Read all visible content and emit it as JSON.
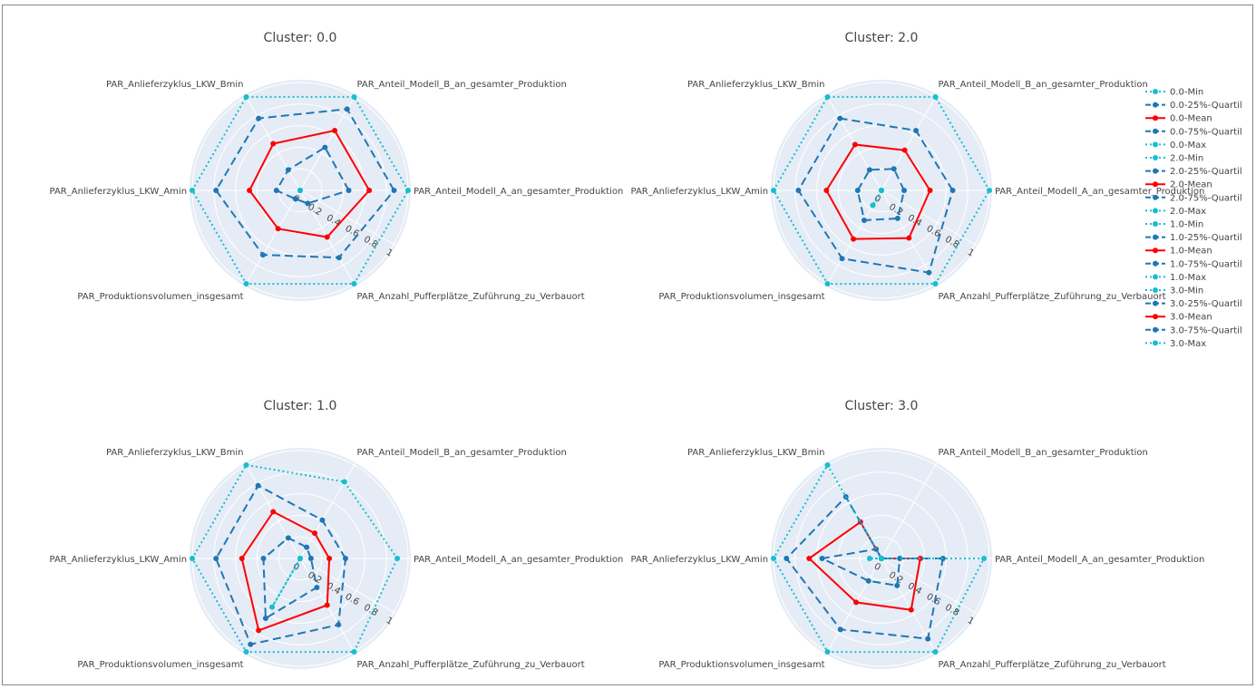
{
  "colors": {
    "min_max": "#17becf",
    "quartil": "#1f77b4",
    "mean": "#ff0000",
    "polar_bg": "#e5ecf6",
    "grid": "#ffffff"
  },
  "chart_data": [
    {
      "type": "radar",
      "title": "Cluster: 0.0",
      "categories": [
        "PAR_Anteil_Modell_A_an_gesamter_Produktion",
        "PAR_Anteil_Modell_B_an_gesamter_Produktion",
        "PAR_Anlieferzyklus_LKW_Bmin",
        "PAR_Anlieferzyklus_LKW_Amin",
        "PAR_Produktionsvolumen_insgesamt",
        "PAR_Anzahl_Pufferplätze_Zuführung_zu_Verbauort"
      ],
      "radial_ticks": [
        "0",
        "0.2",
        "0.4",
        "0.6",
        "0.8",
        "1"
      ],
      "rrange": [
        0,
        1
      ],
      "series": [
        {
          "name": "0.0-Min",
          "style": "dot",
          "values": [
            0,
            0,
            0,
            0,
            0,
            0
          ]
        },
        {
          "name": "0.0-25%-Quartil",
          "style": "dash",
          "values": [
            0.45,
            0.46,
            0.22,
            0.22,
            0.09,
            0.14
          ]
        },
        {
          "name": "0.0-Mean",
          "style": "solid",
          "values": [
            0.64,
            0.64,
            0.5,
            0.47,
            0.41,
            0.5
          ]
        },
        {
          "name": "0.0-75%-Quartil",
          "style": "dash",
          "values": [
            0.87,
            0.87,
            0.77,
            0.78,
            0.69,
            0.72
          ]
        },
        {
          "name": "0.0-Max",
          "style": "dot",
          "values": [
            1,
            1,
            1,
            1,
            1,
            1
          ]
        }
      ]
    },
    {
      "type": "radar",
      "title": "Cluster: 2.0",
      "categories": [
        "PAR_Anteil_Modell_A_an_gesamter_Produktion",
        "PAR_Anteil_Modell_B_an_gesamter_Produktion",
        "PAR_Anlieferzyklus_LKW_Bmin",
        "PAR_Anlieferzyklus_LKW_Amin",
        "PAR_Produktionsvolumen_insgesamt",
        "PAR_Anzahl_Pufferplätze_Zuführung_zu_Verbauort"
      ],
      "radial_ticks": [
        "0",
        "0.2",
        "0.4",
        "0.6",
        "0.8",
        "1"
      ],
      "rrange": [
        0,
        1
      ],
      "series": [
        {
          "name": "2.0-Min",
          "style": "dot",
          "values": [
            0,
            0,
            0,
            0,
            0.16,
            0
          ]
        },
        {
          "name": "2.0-25%-Quartil",
          "style": "dash",
          "values": [
            0.21,
            0.23,
            0.22,
            0.22,
            0.32,
            0.3
          ]
        },
        {
          "name": "2.0-Mean",
          "style": "solid",
          "values": [
            0.45,
            0.43,
            0.49,
            0.51,
            0.52,
            0.51
          ]
        },
        {
          "name": "2.0-75%-Quartil",
          "style": "dash",
          "values": [
            0.66,
            0.64,
            0.77,
            0.77,
            0.73,
            0.88
          ]
        },
        {
          "name": "2.0-Max",
          "style": "dot",
          "values": [
            1,
            1,
            1,
            1,
            1,
            1
          ]
        }
      ]
    },
    {
      "type": "radar",
      "title": "Cluster: 1.0",
      "categories": [
        "PAR_Anteil_Modell_A_an_gesamter_Produktion",
        "PAR_Anteil_Modell_B_an_gesamter_Produktion",
        "PAR_Anlieferzyklus_LKW_Bmin",
        "PAR_Anlieferzyklus_LKW_Amin",
        "PAR_Produktionsvolumen_insgesamt",
        "PAR_Anzahl_Pufferplätze_Zuführung_zu_Verbauort"
      ],
      "radial_ticks": [
        "0",
        "0.2",
        "0.4",
        "0.6",
        "0.8",
        "1"
      ],
      "rrange": [
        0,
        1
      ],
      "series": [
        {
          "name": "1.0-Min",
          "style": "dot",
          "values": [
            0,
            0,
            0,
            0,
            0.52,
            0
          ]
        },
        {
          "name": "1.0-25%-Quartil",
          "style": "dash",
          "values": [
            0.1,
            0.12,
            0.22,
            0.34,
            0.64,
            0.31
          ]
        },
        {
          "name": "1.0-Mean",
          "style": "solid",
          "values": [
            0.27,
            0.27,
            0.5,
            0.54,
            0.77,
            0.5
          ]
        },
        {
          "name": "1.0-75%-Quartil",
          "style": "dash",
          "values": [
            0.42,
            0.41,
            0.78,
            0.78,
            0.92,
            0.71
          ]
        },
        {
          "name": "1.0-Max",
          "style": "dot",
          "values": [
            0.9,
            0.82,
            1,
            1,
            1,
            1
          ]
        }
      ]
    },
    {
      "type": "radar",
      "title": "Cluster: 3.0",
      "categories": [
        "PAR_Anteil_Modell_A_an_gesamter_Produktion",
        "PAR_Anteil_Modell_B_an_gesamter_Produktion",
        "PAR_Anlieferzyklus_LKW_Bmin",
        "PAR_Anlieferzyklus_LKW_Amin",
        "PAR_Produktionsvolumen_insgesamt",
        "PAR_Anzahl_Pufferplätze_Zuführung_zu_Verbauort"
      ],
      "radial_ticks": [
        "0",
        "0.2",
        "0.4",
        "0.6",
        "0.8",
        "1"
      ],
      "rrange": [
        0,
        1
      ],
      "series": [
        {
          "name": "3.0-Min",
          "style": "dot",
          "values": [
            0,
            0,
            0,
            0.11,
            0,
            0
          ]
        },
        {
          "name": "3.0-25%-Quartil",
          "style": "dash",
          "values": [
            0.17,
            0,
            0.1,
            0.55,
            0.24,
            0.29
          ]
        },
        {
          "name": "3.0-Mean",
          "style": "solid",
          "values": [
            0.36,
            0,
            0.39,
            0.67,
            0.47,
            0.55
          ]
        },
        {
          "name": "3.0-75%-Quartil",
          "style": "dash",
          "values": [
            0.57,
            0,
            0.66,
            0.88,
            0.76,
            0.86
          ]
        },
        {
          "name": "3.0-Max",
          "style": "dot",
          "values": [
            0.95,
            0,
            1,
            1,
            1,
            1
          ]
        }
      ]
    }
  ],
  "legend": {
    "position": "right",
    "items": [
      "0.0-Min",
      "0.0-25%-Quartil",
      "0.0-Mean",
      "0.0-75%-Quartil",
      "0.0-Max",
      "2.0-Min",
      "2.0-25%-Quartil",
      "2.0-Mean",
      "2.0-75%-Quartil",
      "2.0-Max",
      "1.0-Min",
      "1.0-25%-Quartil",
      "1.0-Mean",
      "1.0-75%-Quartil",
      "1.0-Max",
      "3.0-Min",
      "3.0-25%-Quartil",
      "3.0-Mean",
      "3.0-75%-Quartil",
      "3.0-Max"
    ]
  }
}
